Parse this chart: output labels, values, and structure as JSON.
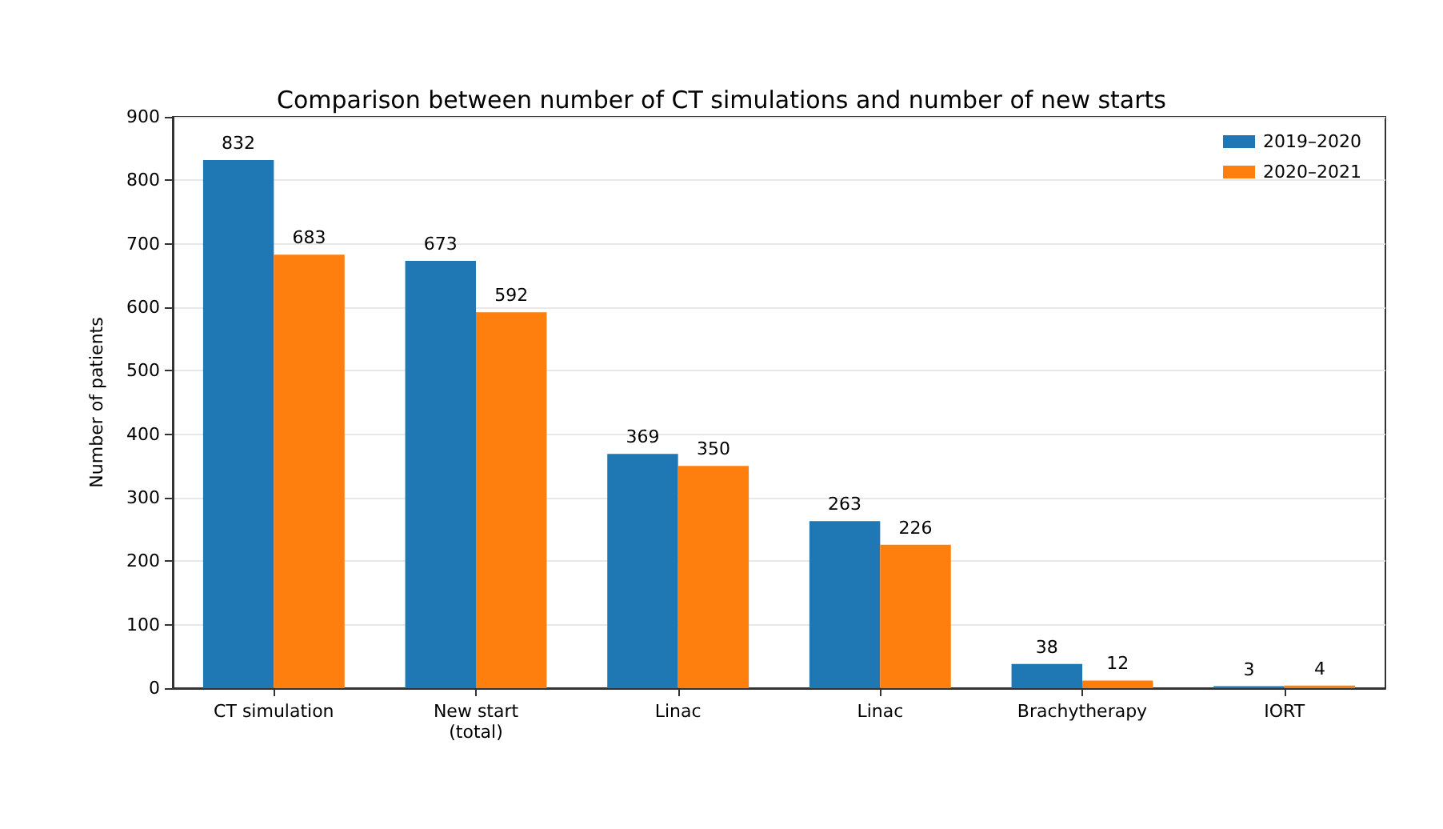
{
  "chart_data": {
    "type": "bar",
    "title": "Comparison between number of CT simulations and number of new starts",
    "ylabel": "Number of patients",
    "categories": [
      "CT simulation",
      "New start\n(total)",
      "Linac",
      "Linac",
      "Brachytherapy",
      "IORT"
    ],
    "series": [
      {
        "name": "2019–2020",
        "color": "#1f77b4",
        "values": [
          832,
          673,
          369,
          263,
          38,
          3
        ]
      },
      {
        "name": "2020–2021",
        "color": "#ff7f0e",
        "values": [
          683,
          592,
          350,
          226,
          12,
          4
        ]
      }
    ],
    "ylim": [
      0,
      900
    ],
    "yticks": [
      0,
      100,
      200,
      300,
      400,
      500,
      600,
      700,
      800,
      900
    ],
    "grid": "y",
    "legend": "top right",
    "data_labels": true
  }
}
